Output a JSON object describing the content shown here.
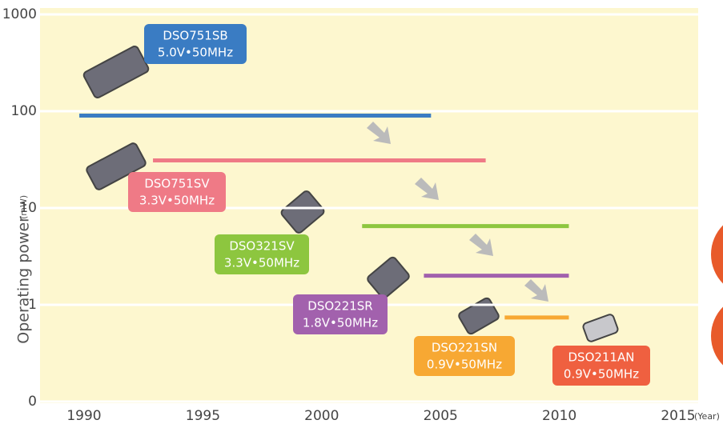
{
  "chart_data": {
    "type": "span",
    "y_label": "Operating power",
    "y_unit": "(mW)",
    "x_unit": "(Year)",
    "log_y": true,
    "grid": true,
    "ylim": [
      0.1,
      1000
    ],
    "yticks": [
      {
        "value": 0.1,
        "label": "0"
      },
      1,
      10,
      100,
      1000
    ],
    "xlim": [
      1990,
      2015
    ],
    "xticks": [
      1990,
      1995,
      2000,
      2005,
      2010,
      2015
    ],
    "series": [
      {
        "name": "DSO751SB",
        "spec": "5.0V•50MHz",
        "color": "#3a7cc3",
        "start": 1989.8,
        "end": 2004.6,
        "value": 90
      },
      {
        "name": "DSO751SV",
        "spec": "3.3V•50MHz",
        "color": "#ef7a86",
        "start": 1992.9,
        "end": 2006.9,
        "value": 31
      },
      {
        "name": "DSO321SV",
        "spec": "3.3V•50MHz",
        "color": "#8dc63f",
        "start": 2001.7,
        "end": 2010.4,
        "value": 6.5
      },
      {
        "name": "DSO221SR",
        "spec": "1.8V•50MHz",
        "color": "#a261ad",
        "start": 2004.3,
        "end": 2010.4,
        "value": 2
      },
      {
        "name": "DSO221SN",
        "spec": "0.9V•50MHz",
        "color": "#f7a833",
        "start": 2007.7,
        "end": 2010.4,
        "value": 0.74
      },
      {
        "name": "DSO211AN",
        "spec": "0.9V•50MHz",
        "color": "#ef6040"
      }
    ]
  }
}
